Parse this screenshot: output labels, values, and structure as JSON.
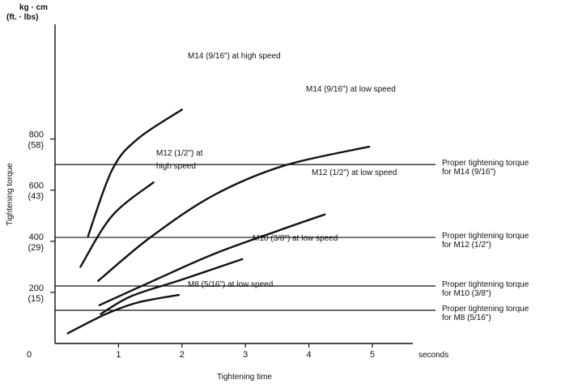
{
  "chart_data": {
    "type": "line",
    "title": "",
    "xlabel": "Tightening time",
    "ylabel": "Tightening torque",
    "y_unit": [
      "kg · cm",
      "(ft. · lbs)"
    ],
    "x_unit_label": "seconds",
    "xlim": [
      0,
      5.6
    ],
    "ylim": [
      0,
      1000
    ],
    "x_ticks": [
      {
        "value": 0,
        "label": "0"
      },
      {
        "value": 1,
        "label": "1"
      },
      {
        "value": 2,
        "label": "2"
      },
      {
        "value": 3,
        "label": "3"
      },
      {
        "value": 4,
        "label": "4"
      },
      {
        "value": 5,
        "label": "5"
      }
    ],
    "y_ticks": [
      {
        "value": 200,
        "label": "200",
        "sub": "(15)"
      },
      {
        "value": 400,
        "label": "400",
        "sub": "(29)"
      },
      {
        "value": 600,
        "label": "600",
        "sub": "(43)"
      },
      {
        "value": 800,
        "label": "800",
        "sub": "(58)"
      }
    ],
    "series": [
      {
        "name": "M14 (9/16\") at high speed",
        "points": [
          [
            0.52,
            420
          ],
          [
            0.9,
            680
          ],
          [
            1.3,
            800
          ],
          [
            2.0,
            915
          ]
        ]
      },
      {
        "name": "M12 (1/2\") at high speed",
        "points": [
          [
            0.4,
            300
          ],
          [
            0.9,
            500
          ],
          [
            1.55,
            630
          ]
        ]
      },
      {
        "name": "M14 (9/16\") at low speed",
        "points": [
          [
            0.68,
            245
          ],
          [
            1.5,
            415
          ],
          [
            2.5,
            580
          ],
          [
            3.6,
            695
          ],
          [
            4.95,
            770
          ]
        ]
      },
      {
        "name": "M12 (1/2\") at low speed",
        "points": [
          [
            0.7,
            150
          ],
          [
            1.5,
            240
          ],
          [
            2.5,
            350
          ],
          [
            3.5,
            440
          ],
          [
            4.25,
            505
          ]
        ]
      },
      {
        "name": "M10 (3/8\") at low speed",
        "points": [
          [
            0.72,
            115
          ],
          [
            1.2,
            185
          ],
          [
            2.0,
            250
          ],
          [
            2.95,
            330
          ]
        ]
      },
      {
        "name": "M8 (5/16\") at low speed",
        "points": [
          [
            0.2,
            40
          ],
          [
            0.8,
            115
          ],
          [
            1.3,
            160
          ],
          [
            1.95,
            190
          ]
        ]
      }
    ],
    "reference_lines": [
      {
        "value": 700,
        "label": [
          "Proper tightening torque",
          "for M14 (9/16\")"
        ]
      },
      {
        "value": 415,
        "label": [
          "Proper tightening torque",
          "for M12 (1/2\")"
        ]
      },
      {
        "value": 225,
        "label": [
          "Proper tightening torque",
          "for M10 (3/8\")"
        ]
      },
      {
        "value": 130,
        "label": [
          "Proper tightening torque",
          "for M8 (5/16\")"
        ]
      }
    ],
    "series_labels": [
      [
        "M14 (9/16\") at high speed"
      ],
      [
        "M12 (1/2\") at",
        "high speed"
      ],
      [
        "M14 (9/16\") at low speed"
      ],
      [
        "M12 (1/2\") at low speed"
      ],
      [
        "M10 (3/8\") at low speed"
      ],
      [
        "M8 (5/16\") at low speed"
      ]
    ],
    "grid": false,
    "legend": "none"
  }
}
